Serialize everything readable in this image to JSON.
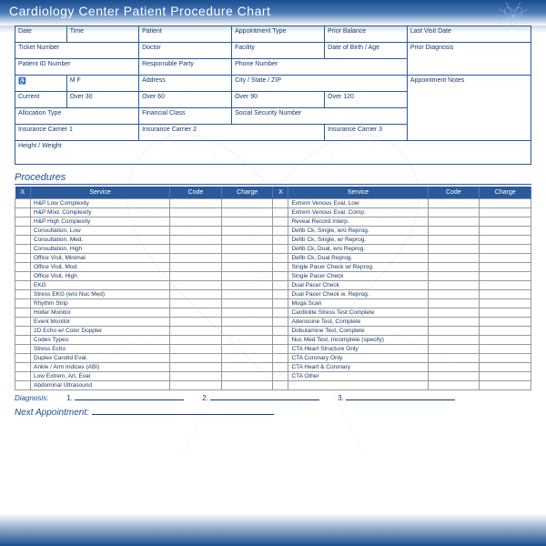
{
  "title": "Cardiology Center Patient Procedure Chart",
  "info": {
    "row1": [
      "Date",
      "Time",
      "Patient",
      "Appointment Type",
      "Prior Balance"
    ],
    "row1right": "Last Visit Date",
    "row2": [
      "Ticket Number",
      "Doctor",
      "Facility",
      "Date of Birth / Age"
    ],
    "row2right": "Prior Diagnosis",
    "row3": [
      "Patient ID Number",
      "Responsible Party",
      "Phone Number"
    ],
    "row4": [
      "♿",
      "M        F",
      "Address",
      "City / State / ZIP"
    ],
    "row4right": "Appointment Notes",
    "row5": [
      "Current",
      "Over 30",
      "Over 60",
      "Over 90",
      "Over 120"
    ],
    "row6": [
      "Allocation Type",
      "Financial Class",
      "Social Security Number"
    ],
    "row7": [
      "Insurance Carrier 1",
      "Insurance Carrier 2",
      "Insurance Carrier 3"
    ],
    "row8": "Height / Weight"
  },
  "procedures_title": "Procedures",
  "cols": [
    "X",
    "Service",
    "Code",
    "Charge",
    "X",
    "Service",
    "Code",
    "Charge"
  ],
  "services_left": [
    "H&P Low Complexity",
    "H&P Mod. Complexity",
    "H&P High Complexity",
    "Consultation, Low",
    "Consultation, Med.",
    "Consultation, High",
    "Office Visit, Minimal",
    "Office Visit, Mod.",
    "Office Visit, High",
    "EKG",
    "Stress EKG (w/o Nuc Med)",
    "Rhythm Strip",
    "Holter Monitor",
    "Event Monitor",
    "2D Echo w/ Color Doppler",
    "Codes Types:",
    "Stress Echo",
    "Duplex Carotid Eval.",
    "Ankle / Arm Indices (ABI)",
    "Low Extrem, Art, Eval",
    "Abdominal Ultrasound"
  ],
  "services_right": [
    "Extrem Venous Eval, Low",
    "Extrem Venous Eval. Comp.",
    "Reveal Record Interp.",
    "Defib Ck, Single, w/o Reprog.",
    "Defib Ck, Single, w/ Reprog.",
    "Defib Ck, Dual, w/o Reprog.",
    "Defib Ck, Dual Reprog.",
    "Single Pacer Check w/ Reprog.",
    "Single Pacer Check",
    "Dual Pacer Check",
    "Dual Pacer Check w. Reprog.",
    "Muga Scan",
    "Cardiolite Stress Test Complete",
    "Adenosine Test, Complete",
    "Dobutamine Test, Complete",
    "Nuc Med Test, Incomplete (specify)",
    "CTA Heart Structure Only",
    "CTA Coronary Only",
    "CTA Heart & Coronary",
    "CTA Other",
    ""
  ],
  "diagnosis": {
    "label": "Diagnosis:",
    "n1": "1.",
    "n2": "2.",
    "n3": "3."
  },
  "next": "Next Appointment:",
  "colors": {
    "primary": "#2a5a9a",
    "bg": "#ffffff"
  }
}
